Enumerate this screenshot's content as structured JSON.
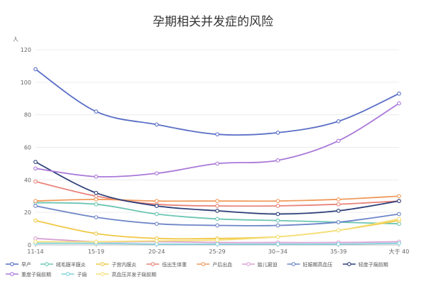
{
  "chart_data": {
    "type": "line",
    "title": "孕期相关并发症的风险",
    "ylabel": "人",
    "xlabel": "",
    "x": [
      "11-14",
      "15-19",
      "20-24",
      "25-29",
      "30~34",
      "35-39",
      "大于 40"
    ],
    "ylim": [
      0,
      120
    ],
    "yticks": [
      0,
      20,
      40,
      60,
      80,
      100,
      120
    ],
    "grid": true,
    "legend_position": "bottom",
    "series": [
      {
        "name": "早产",
        "color": "#5b6fc6",
        "values": [
          108,
          82,
          74,
          68,
          69,
          76,
          93
        ]
      },
      {
        "name": "绒毛膜羊膜炎",
        "color": "#6cc6b3",
        "values": [
          26,
          25,
          19,
          16,
          15,
          14,
          13
        ]
      },
      {
        "name": "子宫内膜炎",
        "color": "#f0c846",
        "values": [
          15,
          7,
          4,
          4,
          5,
          9,
          15
        ]
      },
      {
        "name": "低出生体重",
        "color": "#e8847a",
        "values": [
          39,
          30,
          25,
          24,
          24,
          25,
          27
        ]
      },
      {
        "name": "产后出血",
        "color": "#f09a5c",
        "values": [
          27,
          28,
          27,
          27,
          27,
          28,
          30
        ]
      },
      {
        "name": "胎儿窘迫",
        "color": "#d9a0d4",
        "values": [
          4,
          2,
          2,
          1.5,
          1.5,
          1.5,
          2
        ]
      },
      {
        "name": "妊娠期高血压",
        "color": "#6e86c9",
        "values": [
          24,
          17,
          13,
          12,
          12,
          14,
          19
        ]
      },
      {
        "name": "轻度子痫前期",
        "color": "#2c3e78",
        "values": [
          51,
          32,
          24,
          21,
          19,
          21,
          27
        ]
      },
      {
        "name": "重度子痫前期",
        "color": "#a978d9",
        "values": [
          47,
          42,
          44,
          50,
          52,
          64,
          87
        ]
      },
      {
        "name": "子痫",
        "color": "#7fd0dc",
        "values": [
          1,
          1,
          0.5,
          0.5,
          0.5,
          0.5,
          1
        ]
      },
      {
        "name": "高血压并发子痫前期",
        "color": "#f5e07a",
        "values": [
          2,
          2,
          2.5,
          3,
          5,
          9,
          16
        ]
      }
    ]
  }
}
